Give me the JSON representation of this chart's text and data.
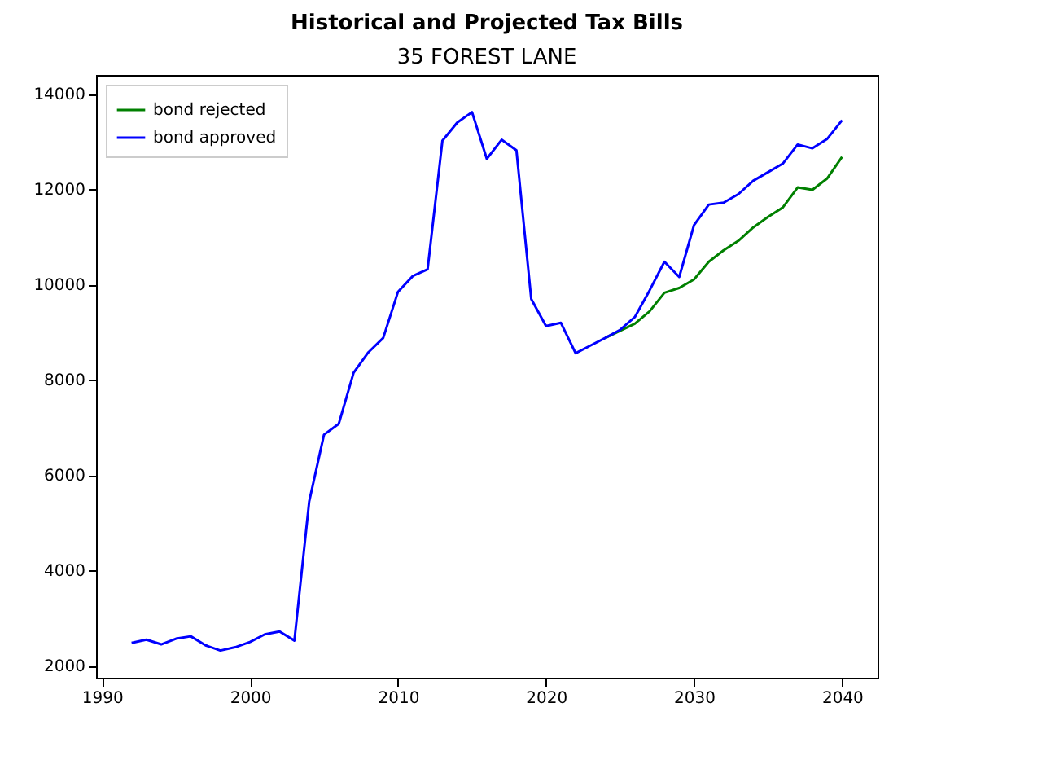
{
  "chart_data": {
    "type": "line",
    "title": "Historical and Projected Tax Bills",
    "subtitle": "35 FOREST LANE",
    "x": [
      1992,
      1993,
      1994,
      1995,
      1996,
      1997,
      1998,
      1999,
      2000,
      2001,
      2002,
      2003,
      2004,
      2005,
      2006,
      2007,
      2008,
      2009,
      2010,
      2011,
      2012,
      2013,
      2014,
      2015,
      2016,
      2017,
      2018,
      2019,
      2020,
      2021,
      2022,
      2023,
      2024,
      2025,
      2026,
      2027,
      2028,
      2029,
      2030,
      2031,
      2032,
      2033,
      2034,
      2035,
      2036,
      2037,
      2038,
      2039,
      2040
    ],
    "series": [
      {
        "name": "bond rejected",
        "color": "#008000",
        "values": [
          null,
          null,
          null,
          null,
          null,
          null,
          null,
          null,
          null,
          null,
          null,
          null,
          null,
          null,
          null,
          null,
          null,
          null,
          null,
          null,
          null,
          null,
          null,
          null,
          null,
          null,
          null,
          null,
          null,
          null,
          null,
          null,
          8880,
          9030,
          9180,
          9440,
          9830,
          9930,
          10110,
          10480,
          10720,
          10920,
          11200,
          11420,
          11620,
          12040,
          11990,
          12230,
          12680
        ]
      },
      {
        "name": "bond approved",
        "color": "#0000ff",
        "values": [
          2480,
          2550,
          2450,
          2570,
          2620,
          2430,
          2320,
          2390,
          2500,
          2660,
          2720,
          2530,
          5450,
          6850,
          7080,
          8150,
          8580,
          8880,
          9850,
          10180,
          10320,
          13020,
          13400,
          13620,
          12640,
          13040,
          12820,
          9700,
          9130,
          9200,
          8560,
          8720,
          8880,
          9050,
          9320,
          9880,
          10480,
          10160,
          11250,
          11680,
          11720,
          11900,
          12180,
          12360,
          12540,
          12940,
          12860,
          13060,
          13450
        ]
      }
    ],
    "xlim": [
      1989.6,
      2042.4
    ],
    "xticks": [
      1990,
      2000,
      2010,
      2020,
      2030,
      2040
    ],
    "ylim": [
      1750,
      14400
    ],
    "yticks": [
      2000,
      4000,
      6000,
      8000,
      10000,
      12000,
      14000
    ],
    "legend": "top left",
    "grid": false
  }
}
